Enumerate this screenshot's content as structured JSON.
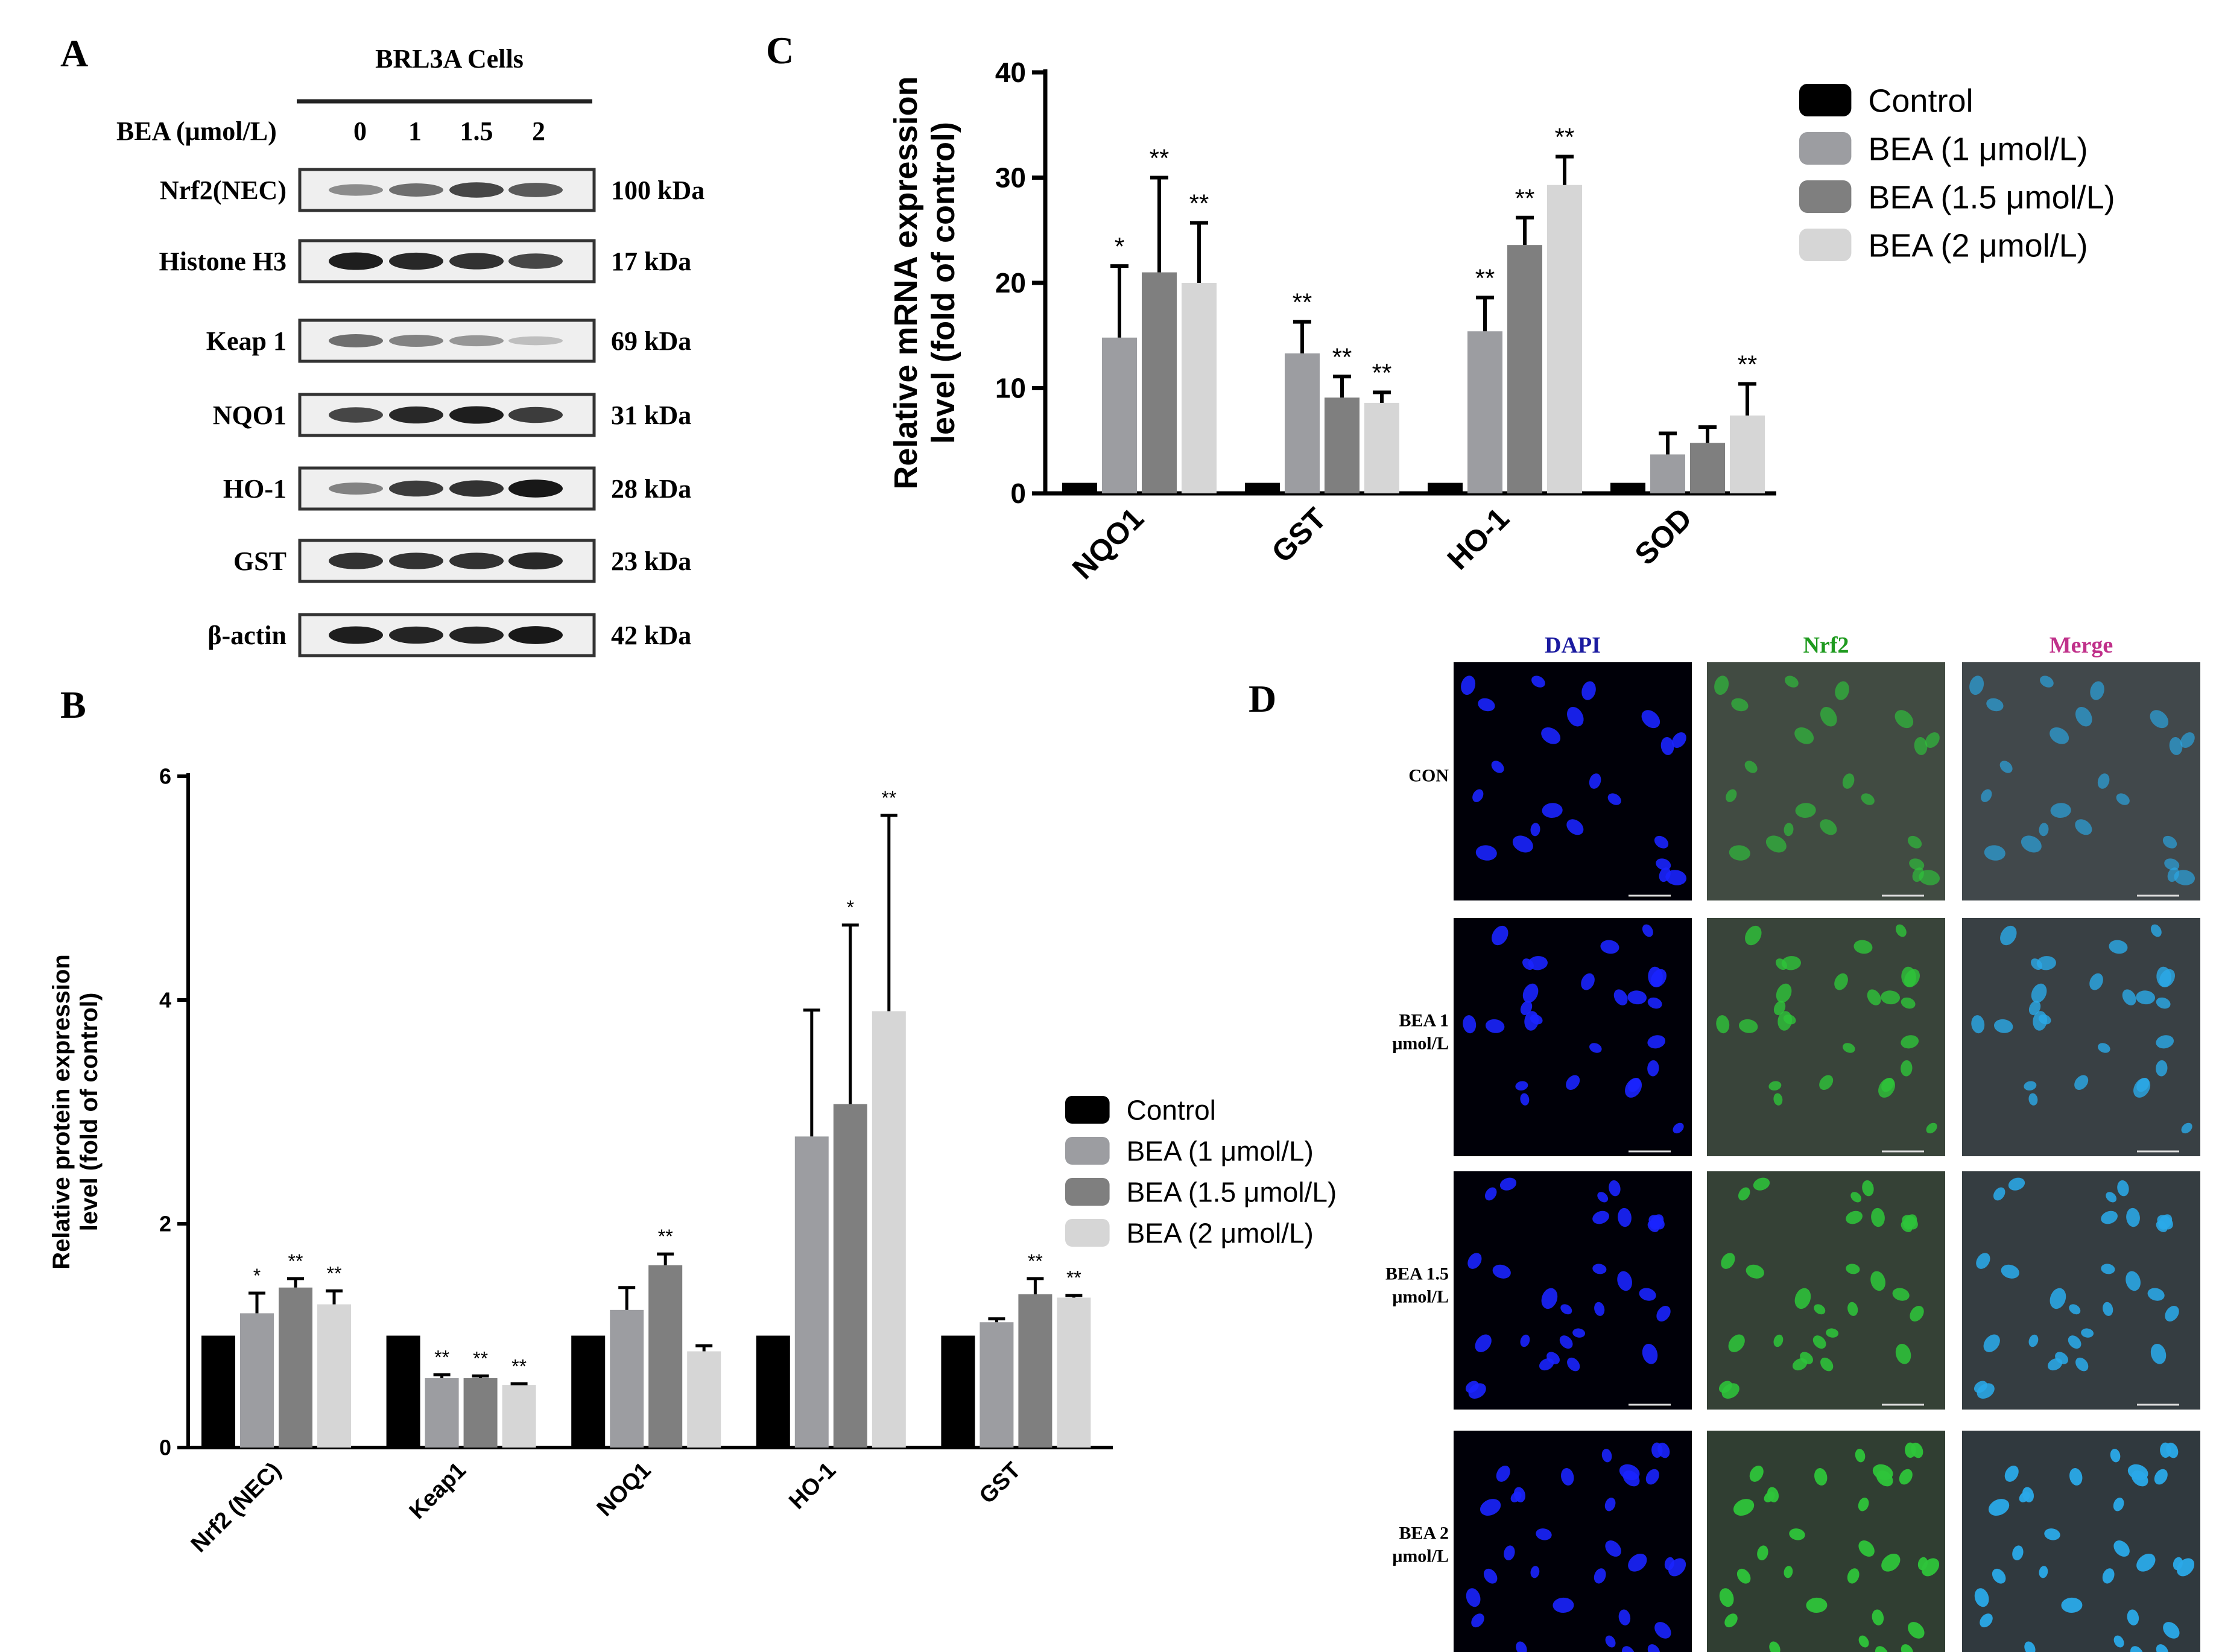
{
  "panels": {
    "A": "A",
    "B": "B",
    "C": "C",
    "D": "D"
  },
  "western_blot": {
    "title": "BRL3A Cells",
    "dose_label": "BEA (μmol/L)",
    "doses": [
      "0",
      "1",
      "1.5",
      "2"
    ],
    "rows": [
      {
        "label": "Nrf2(NEC)",
        "size": "100 kDa",
        "intensities": [
          0.4,
          0.55,
          0.75,
          0.65
        ]
      },
      {
        "label": "Histone H3",
        "size": "17  kDa",
        "intensities": [
          0.95,
          0.9,
          0.85,
          0.75
        ]
      },
      {
        "label": "Keap 1",
        "size": "69 kDa",
        "intensities": [
          0.55,
          0.45,
          0.35,
          0.15
        ]
      },
      {
        "label": "NQO1",
        "size": "31 kDa",
        "intensities": [
          0.75,
          0.9,
          0.95,
          0.8
        ]
      },
      {
        "label": "HO-1",
        "size": "28 kDa",
        "intensities": [
          0.45,
          0.8,
          0.85,
          0.98
        ]
      },
      {
        "label": "GST",
        "size": "23 kDa",
        "intensities": [
          0.85,
          0.85,
          0.85,
          0.9
        ]
      },
      {
        "label": "β-actin",
        "size": "42 kDa",
        "intensities": [
          0.95,
          0.92,
          0.92,
          0.98
        ]
      }
    ]
  },
  "chart_data": [
    {
      "panel": "B",
      "type": "bar",
      "ylabel": "Relative protein expression level (fold of control)",
      "ylabel_lines": [
        "Relative protein expression",
        "level (fold of control)"
      ],
      "ylim": [
        0,
        6
      ],
      "yticks": [
        "0",
        "2",
        "4",
        "6"
      ],
      "categories": [
        "Nrf2 (NEC)",
        "Keap1",
        "NOQ1",
        "HO-1",
        "GST"
      ],
      "series": [
        {
          "name": "Control",
          "color": "#000000",
          "values": [
            1.0,
            1.0,
            1.0,
            1.0,
            1.0
          ],
          "errors": [
            0,
            0,
            0,
            0,
            0
          ],
          "sig": [
            "",
            "",
            "",
            "",
            ""
          ]
        },
        {
          "name": "BEA (1 μmol/L)",
          "color": "#9c9da1",
          "values": [
            1.2,
            0.62,
            1.23,
            2.78,
            1.12
          ],
          "errors": [
            0.18,
            0.03,
            0.2,
            1.13,
            0.03
          ],
          "sig": [
            "*",
            "**",
            "",
            "",
            ""
          ]
        },
        {
          "name": "BEA (1.5 μmol/L)",
          "color": "#7f7f7f",
          "values": [
            1.43,
            0.62,
            1.63,
            3.07,
            1.37
          ],
          "errors": [
            0.08,
            0.02,
            0.1,
            1.6,
            0.14
          ],
          "sig": [
            "**",
            "**",
            "**",
            "*",
            "**"
          ]
        },
        {
          "name": "BEA (2 μmol/L)",
          "color": "#d6d6d6",
          "values": [
            1.28,
            0.56,
            0.86,
            3.9,
            1.34
          ],
          "errors": [
            0.12,
            0.01,
            0.05,
            1.75,
            0.02
          ],
          "sig": [
            "**",
            "**",
            "",
            "**",
            "**"
          ]
        }
      ],
      "legend_position": "right"
    },
    {
      "panel": "C",
      "type": "bar",
      "ylabel": "Relative mRNA expression level (fold of control)",
      "ylabel_lines": [
        "Relative mRNA expression",
        "level (fold of control)"
      ],
      "ylim": [
        0,
        40
      ],
      "yticks": [
        "0",
        "10",
        "20",
        "30",
        "40"
      ],
      "categories": [
        "NQO1",
        "GST",
        "HO-1",
        "SOD"
      ],
      "series": [
        {
          "name": "Control",
          "color": "#000000",
          "values": [
            1.0,
            1.0,
            1.0,
            1.0
          ],
          "errors": [
            0,
            0,
            0,
            0
          ],
          "sig": [
            "",
            "",
            "",
            ""
          ]
        },
        {
          "name": "BEA (1 μmol/L)",
          "color": "#9c9da1",
          "values": [
            14.8,
            13.3,
            15.4,
            3.7
          ],
          "errors": [
            6.8,
            3.0,
            3.2,
            2.0
          ],
          "sig": [
            "*",
            "**",
            "**",
            ""
          ]
        },
        {
          "name": "BEA (1.5 μmol/L)",
          "color": "#7f7f7f",
          "values": [
            21.0,
            9.1,
            23.6,
            4.8
          ],
          "errors": [
            9.0,
            2.0,
            2.6,
            1.5
          ],
          "sig": [
            "**",
            "**",
            "**",
            ""
          ]
        },
        {
          "name": "BEA (2 μmol/L)",
          "color": "#d6d6d6",
          "values": [
            20.0,
            8.6,
            29.3,
            7.4
          ],
          "errors": [
            5.7,
            1.0,
            2.7,
            3.0
          ],
          "sig": [
            "**",
            "**",
            "**",
            "**"
          ]
        }
      ],
      "legend_position": "top-right"
    }
  ],
  "microscopy": {
    "columns": [
      {
        "label": "DAPI",
        "color": "#1a1aa0"
      },
      {
        "label": "Nrf2",
        "color": "#1e9a1e"
      },
      {
        "label": "Merge",
        "color": "#c0308a"
      }
    ],
    "rows": [
      {
        "label_lines": [
          "CON"
        ],
        "intensity": 0.4
      },
      {
        "label_lines": [
          "BEA 1",
          "μmol/L"
        ],
        "intensity": 0.7
      },
      {
        "label_lines": [
          "BEA 1.5",
          "μmol/L"
        ],
        "intensity": 0.85
      },
      {
        "label_lines": [
          "BEA 2",
          "μmol/L"
        ],
        "intensity": 1.0
      }
    ]
  }
}
